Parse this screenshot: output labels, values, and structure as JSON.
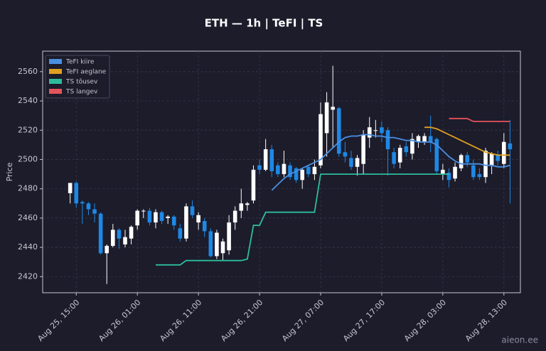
{
  "chart_data": {
    "type": "candlestick",
    "title": "ETH — 1h  |  TeFI  |  TS",
    "y_label": "Price",
    "watermark": "aieon.ee",
    "x": [
      "Aug 25, 14:00",
      "Aug 25, 15:00",
      "Aug 25, 16:00",
      "Aug 25, 17:00",
      "Aug 25, 18:00",
      "Aug 25, 19:00",
      "Aug 25, 20:00",
      "Aug 25, 21:00",
      "Aug 25, 22:00",
      "Aug 25, 23:00",
      "Aug 26, 00:00",
      "Aug 26, 01:00",
      "Aug 26, 02:00",
      "Aug 26, 03:00",
      "Aug 26, 04:00",
      "Aug 26, 05:00",
      "Aug 26, 06:00",
      "Aug 26, 07:00",
      "Aug 26, 08:00",
      "Aug 26, 09:00",
      "Aug 26, 10:00",
      "Aug 26, 11:00",
      "Aug 26, 12:00",
      "Aug 26, 13:00",
      "Aug 26, 14:00",
      "Aug 26, 15:00",
      "Aug 26, 16:00",
      "Aug 26, 17:00",
      "Aug 26, 18:00",
      "Aug 26, 19:00",
      "Aug 26, 20:00",
      "Aug 26, 21:00",
      "Aug 26, 22:00",
      "Aug 26, 23:00",
      "Aug 27, 00:00",
      "Aug 27, 01:00",
      "Aug 27, 02:00",
      "Aug 27, 03:00",
      "Aug 27, 04:00",
      "Aug 27, 05:00",
      "Aug 27, 06:00",
      "Aug 27, 07:00",
      "Aug 27, 08:00",
      "Aug 27, 09:00",
      "Aug 27, 10:00",
      "Aug 27, 11:00",
      "Aug 27, 12:00",
      "Aug 27, 13:00",
      "Aug 27, 14:00",
      "Aug 27, 15:00",
      "Aug 27, 16:00",
      "Aug 27, 17:00",
      "Aug 27, 18:00",
      "Aug 27, 19:00",
      "Aug 27, 20:00",
      "Aug 27, 21:00",
      "Aug 27, 22:00",
      "Aug 27, 23:00",
      "Aug 28, 00:00",
      "Aug 28, 01:00",
      "Aug 28, 02:00",
      "Aug 28, 03:00",
      "Aug 28, 04:00",
      "Aug 28, 05:00",
      "Aug 28, 06:00",
      "Aug 28, 07:00",
      "Aug 28, 08:00",
      "Aug 28, 09:00",
      "Aug 28, 10:00",
      "Aug 28, 11:00",
      "Aug 28, 12:00",
      "Aug 28, 13:00",
      "Aug 28, 14:00"
    ],
    "open": [
      2477,
      2484,
      2471,
      2470,
      2466,
      2463,
      2436,
      2441,
      2452,
      2442,
      2446,
      2455,
      2465,
      2465,
      2457,
      2464,
      2460,
      2461,
      2453,
      2446,
      2468,
      2457,
      2458,
      2451,
      2434,
      2436,
      2438,
      2457,
      2465,
      2469,
      2472,
      2496,
      2493,
      2507,
      2496,
      2490,
      2496,
      2494,
      2486,
      2495,
      2490,
      2496,
      2518,
      2534,
      2535,
      2505,
      2501,
      2495,
      2497,
      2515,
      2520,
      2522,
      2520,
      2505,
      2498,
      2509,
      2504,
      2512,
      2512,
      2516,
      2514,
      2490,
      2491,
      2487,
      2494,
      2503,
      2496,
      2490,
      2488,
      2496,
      2503,
      2497,
      2511
    ],
    "high": [
      2484,
      2485,
      2472,
      2471,
      2470,
      2464,
      2442,
      2456,
      2453,
      2452,
      2455,
      2466,
      2466,
      2467,
      2466,
      2465,
      2462,
      2462,
      2456,
      2470,
      2472,
      2464,
      2460,
      2453,
      2452,
      2446,
      2462,
      2468,
      2480,
      2471,
      2496,
      2500,
      2514,
      2510,
      2498,
      2506,
      2498,
      2495,
      2494,
      2496,
      2500,
      2539,
      2546,
      2564,
      2536,
      2512,
      2506,
      2503,
      2520,
      2529,
      2527,
      2526,
      2522,
      2508,
      2510,
      2512,
      2518,
      2517,
      2518,
      2530,
      2515,
      2497,
      2494,
      2498,
      2504,
      2505,
      2500,
      2494,
      2508,
      2505,
      2506,
      2518,
      2527
    ],
    "low": [
      2470,
      2467,
      2456,
      2462,
      2457,
      2435,
      2415,
      2440,
      2439,
      2440,
      2442,
      2452,
      2460,
      2455,
      2453,
      2456,
      2456,
      2452,
      2444,
      2444,
      2460,
      2452,
      2447,
      2433,
      2432,
      2431,
      2435,
      2452,
      2460,
      2465,
      2470,
      2490,
      2492,
      2488,
      2488,
      2488,
      2486,
      2484,
      2480,
      2488,
      2486,
      2494,
      2502,
      2508,
      2502,
      2498,
      2493,
      2489,
      2490,
      2508,
      2515,
      2512,
      2489,
      2494,
      2494,
      2502,
      2500,
      2508,
      2510,
      2505,
      2490,
      2486,
      2481,
      2485,
      2492,
      2495,
      2486,
      2486,
      2484,
      2490,
      2496,
      2494,
      2470
    ],
    "close": [
      2484,
      2470,
      2470,
      2466,
      2463,
      2436,
      2441,
      2452,
      2446,
      2447,
      2454,
      2465,
      2465,
      2457,
      2464,
      2458,
      2461,
      2455,
      2446,
      2468,
      2462,
      2462,
      2451,
      2434,
      2450,
      2444,
      2457,
      2465,
      2470,
      2470,
      2493,
      2493,
      2507,
      2492,
      2490,
      2497,
      2488,
      2486,
      2493,
      2490,
      2495,
      2531,
      2539,
      2536,
      2504,
      2502,
      2495,
      2501,
      2517,
      2522,
      2520,
      2518,
      2507,
      2497,
      2508,
      2505,
      2514,
      2516,
      2516,
      2512,
      2492,
      2493,
      2486,
      2495,
      2503,
      2498,
      2488,
      2488,
      2506,
      2504,
      2499,
      2512,
      2507
    ],
    "up_color": "#ffffff",
    "down_color": "#1e88e5",
    "series": [
      {
        "name": "TeFI kiire",
        "color": "#4a90e2",
        "values": [
          null,
          null,
          null,
          null,
          null,
          null,
          null,
          null,
          null,
          null,
          null,
          null,
          null,
          null,
          null,
          null,
          null,
          null,
          null,
          null,
          null,
          null,
          null,
          null,
          null,
          null,
          null,
          null,
          null,
          null,
          null,
          null,
          null,
          2479,
          2483,
          2487,
          2490,
          2492,
          2494,
          2496,
          2498,
          2500,
          2504,
          2508,
          2512,
          2515,
          2516,
          2516,
          2517,
          2517,
          2516,
          2516,
          2515,
          2515,
          2514,
          2513,
          2513,
          2512,
          2512,
          2512,
          2510,
          2506,
          2502,
          2499,
          2497,
          2497,
          2497,
          2497,
          2496,
          2496,
          2495,
          2495,
          2496
        ]
      },
      {
        "name": "TeFI aeglane",
        "color": "#e0a020",
        "values": [
          null,
          null,
          null,
          null,
          null,
          null,
          null,
          null,
          null,
          null,
          null,
          null,
          null,
          null,
          null,
          null,
          null,
          null,
          null,
          null,
          null,
          null,
          null,
          null,
          null,
          null,
          null,
          null,
          null,
          null,
          null,
          null,
          null,
          null,
          null,
          null,
          null,
          null,
          null,
          null,
          null,
          null,
          null,
          null,
          null,
          null,
          null,
          null,
          null,
          null,
          null,
          null,
          null,
          null,
          null,
          null,
          null,
          null,
          2522,
          2522,
          2521,
          2519,
          2517,
          2515,
          2513,
          2511,
          2509,
          2507,
          2505,
          2504,
          2503,
          2503,
          2503
        ]
      },
      {
        "name": "TS tõusev",
        "color": "#2ebd9b",
        "values": [
          null,
          null,
          null,
          null,
          null,
          null,
          null,
          null,
          null,
          null,
          null,
          null,
          null,
          null,
          2428,
          2428,
          2428,
          2428,
          2428,
          2431,
          2431,
          2431,
          2431,
          2431,
          2431,
          2431,
          2431,
          2431,
          2431,
          2432,
          2455,
          2455,
          2464,
          2464,
          2464,
          2464,
          2464,
          2464,
          2464,
          2464,
          2464,
          2490,
          2490,
          2490,
          2490,
          2490,
          2490,
          2490,
          2490,
          2490,
          2490,
          2490,
          2490,
          2490,
          2490,
          2490,
          2490,
          2490,
          2490,
          2490,
          2490,
          2490,
          2490,
          null,
          null,
          null,
          null,
          null,
          null,
          null,
          null,
          null,
          null
        ]
      },
      {
        "name": "TS langev",
        "color": "#e5535b",
        "values": [
          null,
          null,
          null,
          null,
          null,
          null,
          null,
          null,
          null,
          null,
          null,
          null,
          null,
          null,
          null,
          null,
          null,
          null,
          null,
          null,
          null,
          null,
          null,
          null,
          null,
          null,
          null,
          null,
          null,
          null,
          null,
          null,
          null,
          null,
          null,
          null,
          null,
          null,
          null,
          null,
          null,
          null,
          null,
          null,
          null,
          null,
          null,
          null,
          null,
          null,
          null,
          null,
          null,
          null,
          null,
          null,
          null,
          null,
          null,
          null,
          null,
          null,
          2528,
          2528,
          2528,
          2528,
          2526,
          2526,
          2526,
          2526,
          2526,
          2526,
          2526
        ]
      }
    ],
    "xticks": [
      "Aug 25, 15:00",
      "Aug 26, 01:00",
      "Aug 26, 11:00",
      "Aug 26, 21:00",
      "Aug 27, 07:00",
      "Aug 27, 17:00",
      "Aug 28, 03:00",
      "Aug 28, 13:00"
    ],
    "ylim": [
      2409,
      2574
    ],
    "yticks": [
      2420,
      2440,
      2460,
      2480,
      2500,
      2520,
      2540,
      2560
    ],
    "grid": true,
    "legend": "upper left"
  }
}
